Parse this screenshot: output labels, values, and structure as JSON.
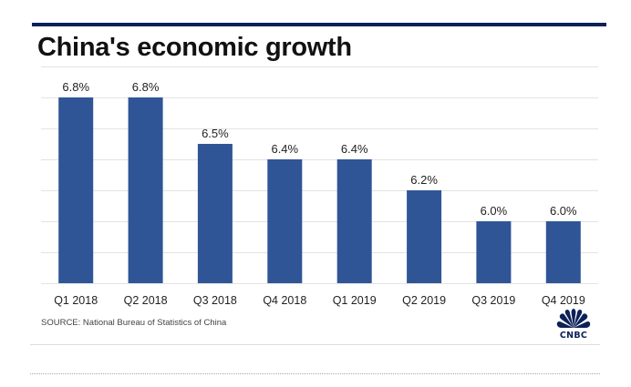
{
  "chart_data": {
    "type": "bar",
    "title": "China's economic growth",
    "categories": [
      "Q1 2018",
      "Q2 2018",
      "Q3 2018",
      "Q4 2018",
      "Q1 2019",
      "Q2 2019",
      "Q3 2019",
      "Q4 2019"
    ],
    "values": [
      6.8,
      6.8,
      6.5,
      6.4,
      6.4,
      6.2,
      6.0,
      6.0
    ],
    "data_labels": [
      "6.8%",
      "6.8%",
      "6.5%",
      "6.4%",
      "6.4%",
      "6.2%",
      "6.0%",
      "6.0%"
    ],
    "xlabel": "",
    "ylabel": "",
    "ylim": [
      5.6,
      7.0
    ],
    "ytick_step": 0.2,
    "grid": true,
    "y_tick_labels_visible": false,
    "bar_color": "#2f5597",
    "source": "SOURCE: National Bureau of Statistics of China"
  },
  "branding": {
    "logo": "cnbc-peacock-icon",
    "logo_text": "CNBC",
    "accent_color": "#0b2158"
  }
}
